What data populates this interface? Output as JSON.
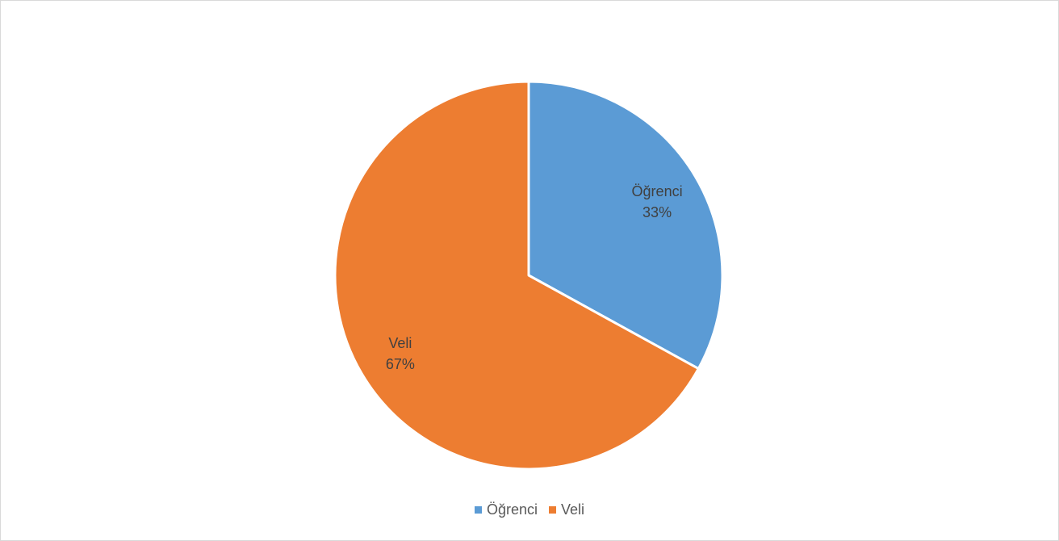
{
  "chart_data": {
    "type": "pie",
    "title": "",
    "categories": [
      "Öğrenci",
      "Veli"
    ],
    "values": [
      33,
      67
    ],
    "value_labels": [
      "33%",
      "67%"
    ],
    "colors": [
      "#5b9bd5",
      "#ed7d31"
    ],
    "start_angle_deg": 0,
    "direction": "clockwise",
    "legend_position": "bottom",
    "data_labels": true
  }
}
